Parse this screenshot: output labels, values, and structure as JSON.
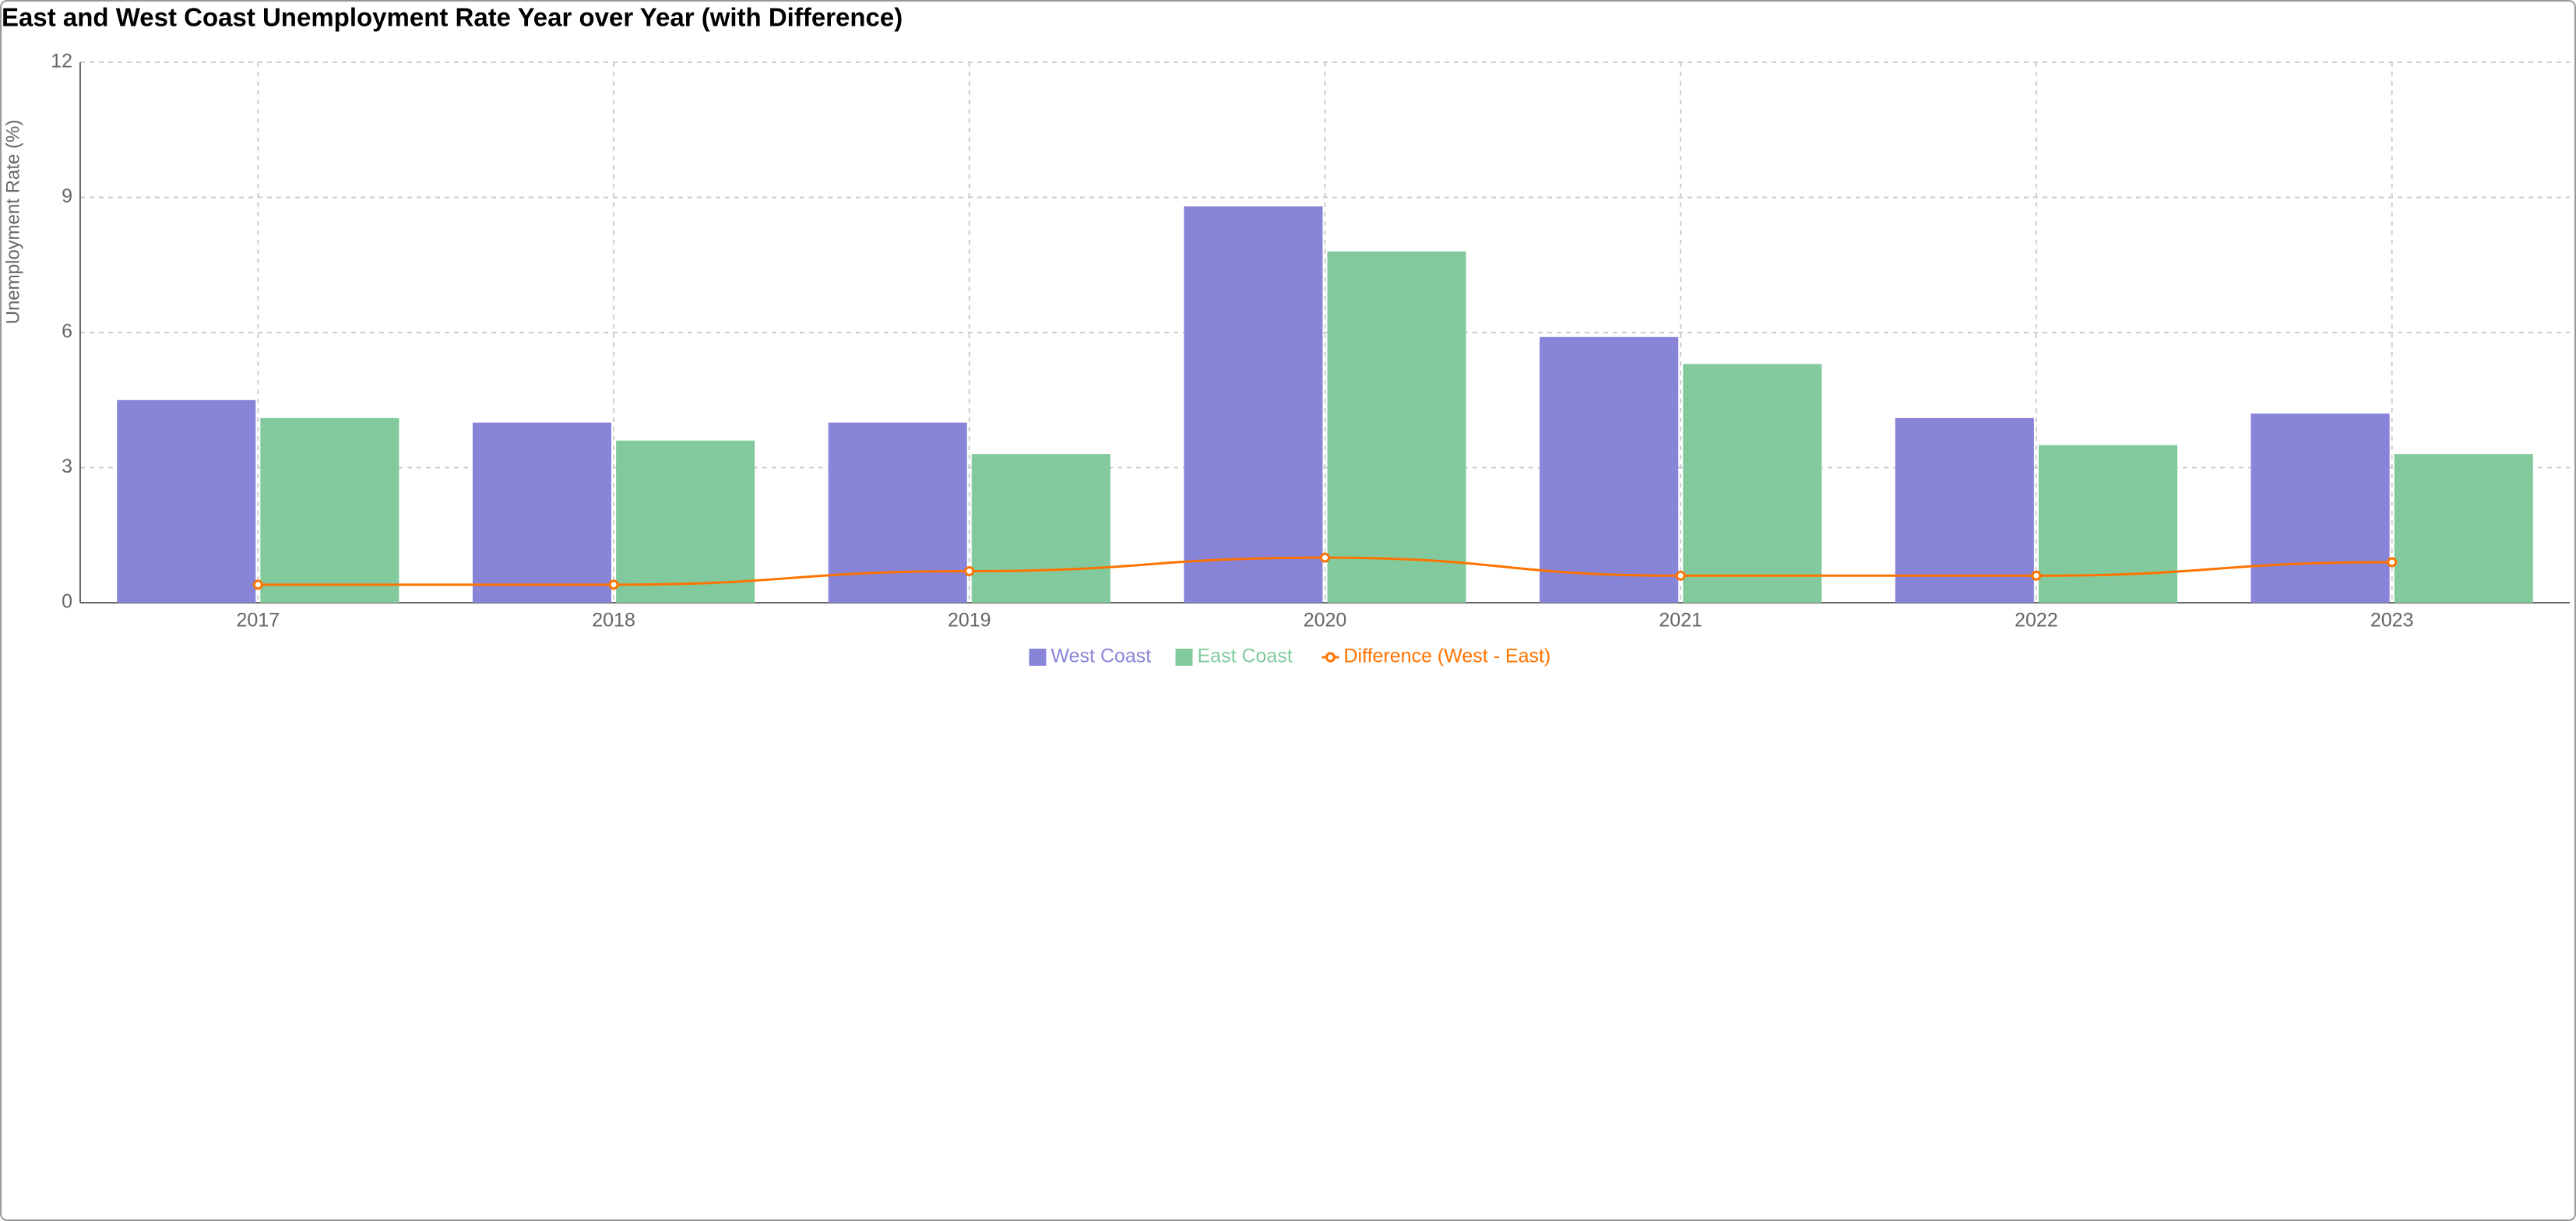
{
  "chart_data": {
    "type": "bar",
    "title": "East and West Coast Unemployment Rate Year over Year (with Difference)",
    "y_label": "Unemployment Rate (%)",
    "categories": [
      "2017",
      "2018",
      "2019",
      "2020",
      "2021",
      "2022",
      "2023"
    ],
    "series": [
      {
        "name": "West Coast",
        "color": "#8884d8",
        "values": [
          4.5,
          4.0,
          4.0,
          8.8,
          5.9,
          4.1,
          4.2
        ]
      },
      {
        "name": "East Coast",
        "color": "#82ca9d",
        "values": [
          4.1,
          3.6,
          3.3,
          7.8,
          5.3,
          3.5,
          3.3
        ]
      },
      {
        "name": "Difference (West - East)",
        "color": "#ff7300",
        "type": "line",
        "values": [
          0.4,
          0.4,
          0.7,
          1.0,
          0.6,
          0.6,
          0.9
        ]
      }
    ],
    "ylim": [
      0,
      12
    ],
    "yticks": [
      0,
      3,
      6,
      9,
      12
    ],
    "grid": true
  }
}
